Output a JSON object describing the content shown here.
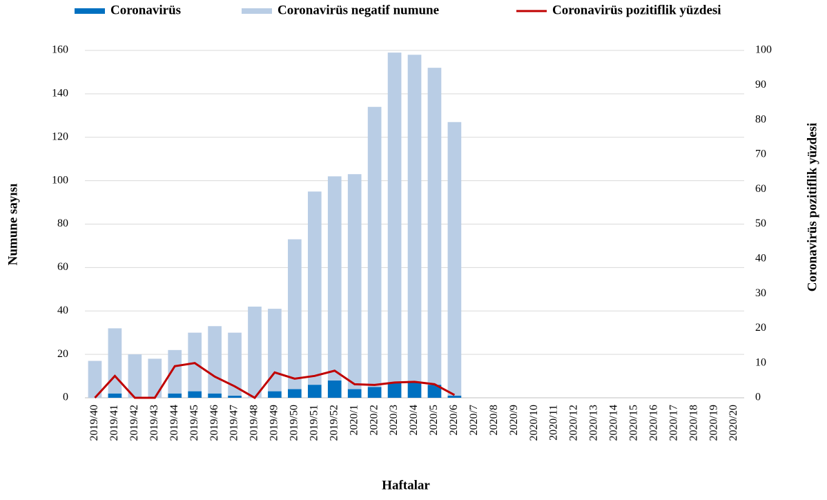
{
  "chart_data": {
    "type": "bar",
    "stacked": true,
    "x_label": "Haftalar",
    "y_label": "Numune sayısı",
    "y2_label": "Coronavirüs pozitiflik yüzdesi",
    "categories": [
      "2019/40",
      "2019/41",
      "2019/42",
      "2019/43",
      "2019/44",
      "2019/45",
      "2019/46",
      "2019/47",
      "2019/48",
      "2019/49",
      "2019/50",
      "2019/51",
      "2019/52",
      "2020/1",
      "2020/2",
      "2020/3",
      "2020/4",
      "2020/5",
      "2020/6",
      "2020/7",
      "2020/8",
      "2020/9",
      "2020/10",
      "2020/11",
      "2020/12",
      "2020/13",
      "2020/14",
      "2020/15",
      "2020/16",
      "2020/17",
      "2020/18",
      "2020/19",
      "2020/20"
    ],
    "series": [
      {
        "name": "Coronavirüs",
        "type": "bar",
        "color": "#0070c0",
        "values": [
          0,
          2,
          0,
          0,
          2,
          3,
          2,
          1,
          0,
          3,
          4,
          6,
          8,
          4,
          5,
          7,
          7,
          6,
          1,
          null,
          null,
          null,
          null,
          null,
          null,
          null,
          null,
          null,
          null,
          null,
          null,
          null,
          null
        ]
      },
      {
        "name": "Coronavirüs negatif numune",
        "type": "bar",
        "color": "#b9cde5",
        "values": [
          17,
          30,
          20,
          18,
          20,
          27,
          31,
          29,
          42,
          38,
          69,
          89,
          94,
          99,
          129,
          152,
          151,
          146,
          126,
          null,
          null,
          null,
          null,
          null,
          null,
          null,
          null,
          null,
          null,
          null,
          null,
          null,
          null
        ]
      },
      {
        "name": "Coronavirüs pozitiflik yüzdesi",
        "type": "line",
        "axis": "y2",
        "color": "#c00000",
        "values": [
          0,
          6.3,
          0,
          0,
          9.1,
          10,
          6.1,
          3.3,
          0,
          7.3,
          5.5,
          6.3,
          7.8,
          3.9,
          3.7,
          4.4,
          4.6,
          3.9,
          0.8,
          null,
          null,
          null,
          null,
          null,
          null,
          null,
          null,
          null,
          null,
          null,
          null,
          null,
          null
        ]
      }
    ],
    "ylim": [
      0,
      160
    ],
    "yticks": [
      0,
      20,
      40,
      60,
      80,
      100,
      120,
      140,
      160
    ],
    "y2lim": [
      0,
      100
    ],
    "y2ticks": [
      0,
      10,
      20,
      30,
      40,
      50,
      60,
      70,
      80,
      90,
      100
    ],
    "grid": true,
    "legend": "top"
  }
}
